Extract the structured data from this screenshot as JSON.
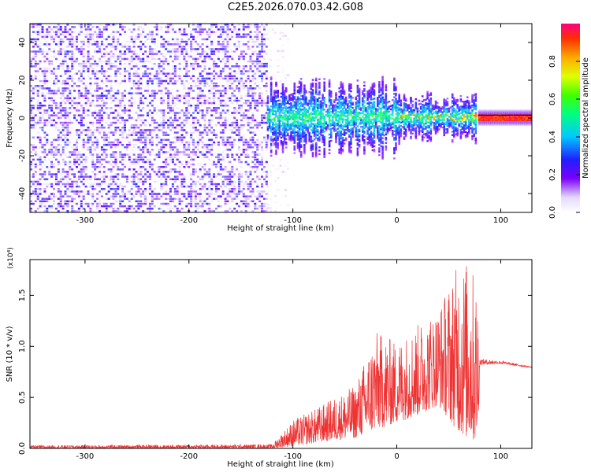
{
  "page_title": "C2E5.2026.070.03.42.G08",
  "chart_data": [
    {
      "type": "heatmap",
      "title": "C2E5.2026.070.03.42.G08",
      "xlabel": "Height of straight line (km)",
      "ylabel": "Frequency (Hz)",
      "xlim": [
        -353,
        130
      ],
      "ylim": [
        -50,
        50
      ],
      "xticks": [
        -300,
        -200,
        -100,
        0,
        100
      ],
      "xtick_labels": [
        "-300",
        "-200",
        "-100",
        "0",
        "100"
      ],
      "yticks": [
        -40,
        -20,
        0,
        20,
        40
      ],
      "ytick_labels": [
        "-40",
        "-20",
        "0",
        "20",
        "40"
      ],
      "colorbar": {
        "label": "Normalized spectral amplitude",
        "range": [
          0,
          1
        ],
        "ticks": [
          0.0,
          0.2,
          0.4,
          0.6,
          0.8
        ],
        "tick_labels": [
          "0.0",
          "0.2",
          "0.4",
          "0.6",
          "0.8"
        ],
        "colormap": "rainbow"
      },
      "regions": [
        {
          "name": "noise",
          "x_range": [
            -353,
            -125
          ],
          "freq_range": [
            -50,
            50
          ],
          "amplitude": [
            0.03,
            0.3
          ]
        },
        {
          "name": "noise-fade",
          "x_range": [
            -125,
            -105
          ],
          "freq_range": [
            -50,
            50
          ],
          "amplitude": [
            0.02,
            0.1
          ]
        },
        {
          "name": "blob-signal",
          "x_range": [
            -125,
            75
          ],
          "freq_halfwidth": [
            5,
            22
          ],
          "amplitude": [
            0.15,
            0.55
          ]
        },
        {
          "name": "tone",
          "x_range": [
            78,
            130
          ],
          "freq_center": 0,
          "freq_halfwidth": 1.5,
          "amplitude": [
            0.85,
            1.0
          ]
        }
      ],
      "line": {
        "x_range": [
          78,
          130
        ],
        "y": 0
      }
    },
    {
      "type": "line",
      "xlabel": "Height of straight line (km)",
      "ylabel": "SNR (10 * v/v)",
      "y_exponent_label": "(x10⁴)",
      "xlim": [
        -353,
        130
      ],
      "ylim": [
        0,
        1.85
      ],
      "xticks": [
        -300,
        -200,
        -100,
        0,
        100
      ],
      "xtick_labels": [
        "-300",
        "-200",
        "-100",
        "0",
        "100"
      ],
      "yticks": [
        0.0,
        0.5,
        1.0,
        1.5
      ],
      "ytick_labels": [
        "0.0",
        "0.5",
        "1.0",
        "1.5"
      ],
      "series": [
        {
          "name": "SNR",
          "color": "#ee3333",
          "envelope_x": [
            -353,
            -120,
            -100,
            -80,
            -60,
            -40,
            -20,
            0,
            20,
            40,
            60,
            70,
            78,
            80,
            100,
            130
          ],
          "envelope_max": [
            0.03,
            0.04,
            0.28,
            0.38,
            0.5,
            0.62,
            1.15,
            1.05,
            1.22,
            1.38,
            1.85,
            1.85,
            1.6,
            0.88,
            0.86,
            0.8
          ],
          "envelope_min": [
            0.0,
            0.0,
            0.02,
            0.05,
            0.08,
            0.1,
            0.18,
            0.25,
            0.32,
            0.42,
            0.15,
            0.08,
            0.05,
            0.82,
            0.83,
            0.79
          ]
        }
      ]
    }
  ]
}
